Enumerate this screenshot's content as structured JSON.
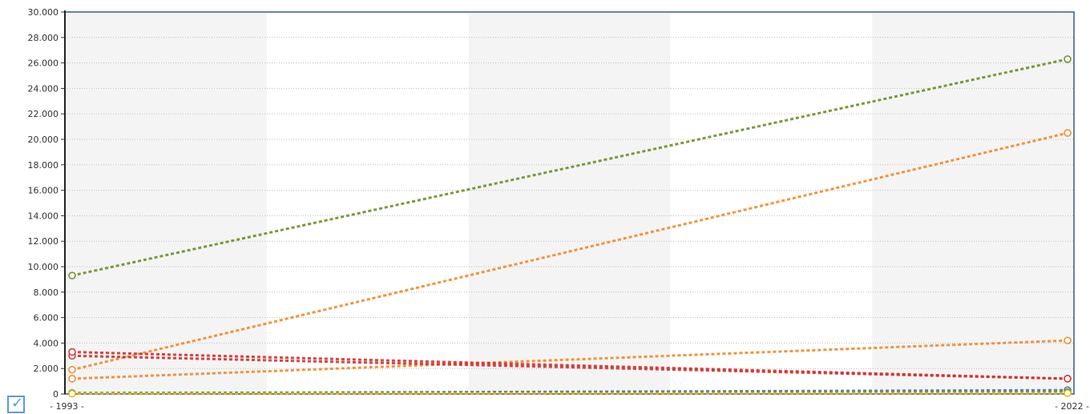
{
  "chart_data": {
    "type": "line",
    "title": "",
    "xlabel": "",
    "ylabel": "",
    "x": [
      1993,
      2022
    ],
    "x_tick_labels": [
      "- 1993 -",
      "- 2022 -"
    ],
    "ylim": [
      0,
      30000
    ],
    "y_ticks": [
      0,
      2000,
      4000,
      6000,
      8000,
      10000,
      12000,
      14000,
      16000,
      18000,
      20000,
      22000,
      24000,
      26000,
      28000,
      30000
    ],
    "y_tick_labels": [
      "0",
      "2.000",
      "4.000",
      "6.000",
      "8.000",
      "10.000",
      "12.000",
      "14.000",
      "16.000",
      "18.000",
      "20.000",
      "22.000",
      "24.000",
      "26.000",
      "28.000",
      "30.000"
    ],
    "grid": true,
    "series": [
      {
        "values": [
          9300,
          26300
        ],
        "color": "#6b8e23"
      },
      {
        "values": [
          1900,
          20500
        ],
        "color": "#f08a24"
      },
      {
        "values": [
          1200,
          4200
        ],
        "color": "#f08a24"
      },
      {
        "values": [
          3000,
          1200
        ],
        "color": "#d0312d"
      },
      {
        "values": [
          3300,
          1200
        ],
        "color": "#d0312d"
      },
      {
        "values": [
          50,
          300
        ],
        "color": "#4472c4"
      },
      {
        "values": [
          80,
          150
        ],
        "color": "#6b8e23"
      },
      {
        "values": [
          20,
          60
        ],
        "color": "#f0b400"
      }
    ]
  },
  "controls": {
    "checkbox_mark": "✓",
    "checkbox_icon": "checkbox-checked-icon"
  }
}
